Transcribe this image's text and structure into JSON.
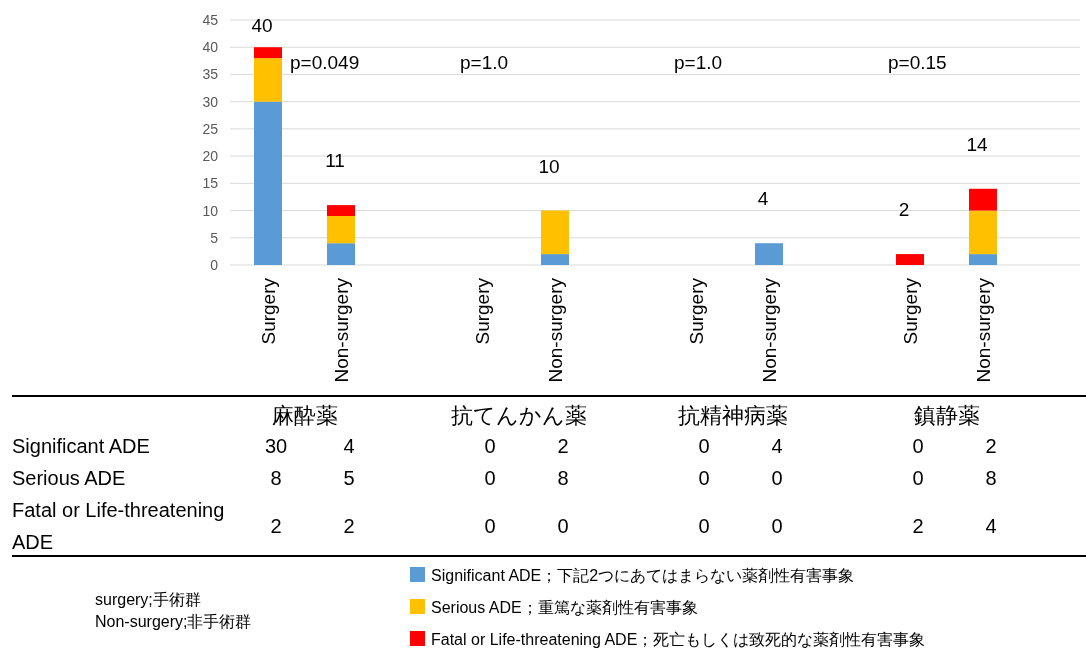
{
  "chart_data": {
    "type": "bar",
    "stacked": true,
    "categories": [
      "Surgery",
      "Non-surgery",
      "Surgery",
      "Non-surgery",
      "Surgery",
      "Non-surgery",
      "Surgery",
      "Non-surgery"
    ],
    "series": [
      {
        "name": "Significant ADE；下記2つにあてはまらない薬剤性有害事象",
        "color": "#5b9bd5",
        "values": [
          30,
          4,
          0,
          2,
          0,
          4,
          0,
          2
        ]
      },
      {
        "name": "Serious ADE；重篤な薬剤性有害事象",
        "color": "#ffc000",
        "values": [
          8,
          5,
          0,
          8,
          0,
          0,
          0,
          8
        ]
      },
      {
        "name": "Fatal or Life-threatening ADE；死亡もしくは致死的な薬剤性有害事象",
        "color": "#ff0000",
        "values": [
          2,
          2,
          0,
          0,
          0,
          0,
          2,
          4
        ]
      }
    ],
    "totals": [
      "40",
      "11",
      null,
      "10",
      null,
      "4",
      "2",
      "14"
    ],
    "data_labels": true,
    "ylim": [
      0,
      45
    ],
    "yticks": [
      0,
      5,
      10,
      15,
      20,
      25,
      30,
      35,
      40,
      45
    ],
    "grid": "y",
    "legend": "bottom",
    "annotations": [
      "p=0.049",
      "p=1.0",
      "p=1.0",
      "p=0.15",
      "麻酔薬",
      "抗てんかん薬",
      "抗精神病薬",
      "鎮静薬",
      "surgery;手術群",
      "Non-surgery;非手術群",
      "Significant ADE",
      "Serious ADE",
      "Fatal or Life-threatening ADE"
    ]
  }
}
